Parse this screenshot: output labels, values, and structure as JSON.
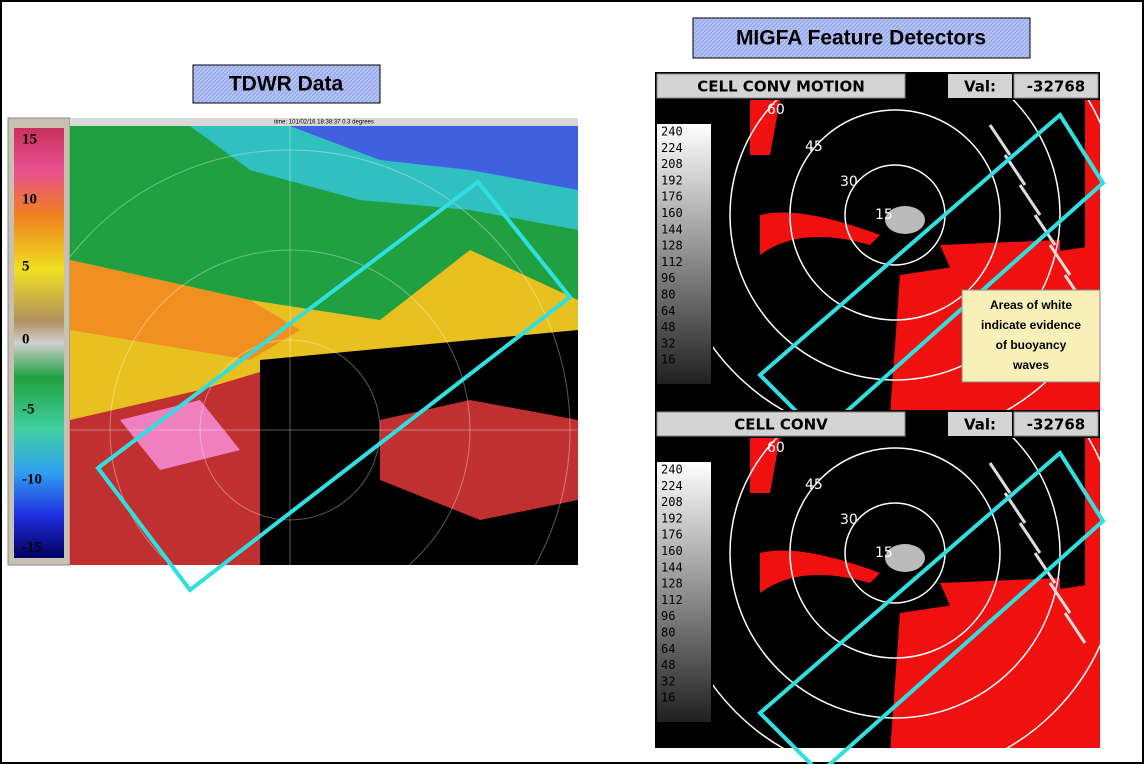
{
  "left_panel": {
    "title": "TDWR Data",
    "header": "time: 101/02/16 18:38:37 0.3 degrees",
    "colorbar_labels": [
      15,
      10,
      5,
      0,
      -5,
      -10,
      -15
    ]
  },
  "right_panel": {
    "title": "MIGFA Feature Detectors",
    "detectors": [
      {
        "name": "CELL CONV MOTION",
        "val_label": "Val:",
        "val": -32768,
        "scale": [
          240,
          224,
          208,
          192,
          176,
          160,
          144,
          128,
          112,
          96,
          80,
          64,
          48,
          32,
          16
        ],
        "rings": [
          60,
          45,
          30,
          15
        ]
      },
      {
        "name": "CELL CONV",
        "val_label": "Val:",
        "val": -32768,
        "scale": [
          240,
          224,
          208,
          192,
          176,
          160,
          144,
          128,
          112,
          96,
          80,
          64,
          48,
          32,
          16
        ],
        "rings": [
          60,
          45,
          30,
          15
        ]
      }
    ],
    "annotation": [
      "Areas of white",
      "indicate evidence",
      "of buoyancy",
      "waves"
    ]
  }
}
